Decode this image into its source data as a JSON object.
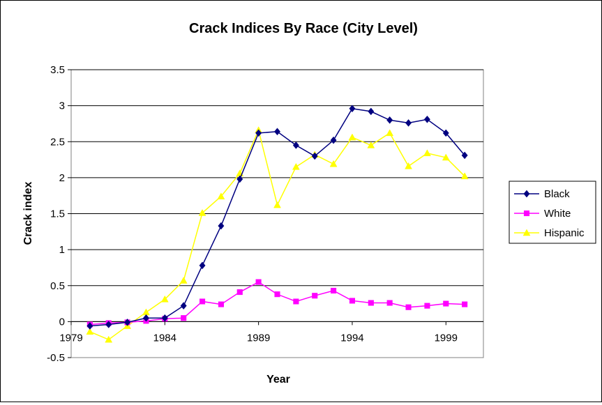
{
  "chart_data": {
    "type": "line",
    "title": "Crack Indices By Race (City Level)",
    "xlabel": "Year",
    "ylabel": "Crack index",
    "xlim": [
      1979,
      2001
    ],
    "ylim": [
      -0.5,
      3.5
    ],
    "x_ticks": [
      1979,
      1984,
      1989,
      1994,
      1999
    ],
    "y_ticks": [
      -0.5,
      0,
      0.5,
      1,
      1.5,
      2,
      2.5,
      3,
      3.5
    ],
    "x_tick_labels": [
      "1979",
      "1984",
      "1989",
      "1994",
      "1999"
    ],
    "y_tick_labels": [
      "-0.5",
      "0",
      "0.5",
      "1",
      "1.5",
      "2",
      "2.5",
      "3",
      "3.5"
    ],
    "grid": "horizontal",
    "legend_position": "right",
    "x": [
      1980,
      1981,
      1982,
      1983,
      1984,
      1985,
      1986,
      1987,
      1988,
      1989,
      1990,
      1991,
      1992,
      1993,
      1994,
      1995,
      1996,
      1997,
      1998,
      1999,
      2000
    ],
    "series": [
      {
        "name": "Black",
        "color": "#000080",
        "marker": "diamond",
        "values": [
          -0.06,
          -0.04,
          -0.01,
          0.05,
          0.05,
          0.22,
          0.78,
          1.33,
          1.98,
          2.62,
          2.64,
          2.45,
          2.3,
          2.52,
          2.96,
          2.92,
          2.8,
          2.76,
          2.81,
          2.62,
          2.31
        ]
      },
      {
        "name": "White",
        "color": "#ff00ff",
        "marker": "square",
        "values": [
          -0.04,
          -0.02,
          -0.01,
          0.01,
          0.04,
          0.05,
          0.28,
          0.24,
          0.41,
          0.55,
          0.38,
          0.28,
          0.36,
          0.43,
          0.29,
          0.26,
          0.26,
          0.2,
          0.22,
          0.25,
          0.24
        ]
      },
      {
        "name": "Hispanic",
        "color": "#ffff00",
        "marker": "triangle",
        "values": [
          -0.14,
          -0.25,
          -0.06,
          0.13,
          0.31,
          0.57,
          1.51,
          1.74,
          2.06,
          2.66,
          1.62,
          2.15,
          2.32,
          2.19,
          2.56,
          2.45,
          2.62,
          2.16,
          2.34,
          2.28,
          2.02
        ]
      }
    ]
  }
}
